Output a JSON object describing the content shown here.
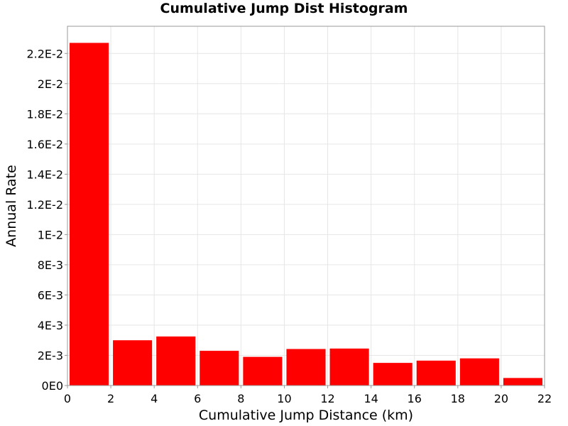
{
  "chart_data": {
    "type": "bar",
    "title": "Cumulative Jump Dist Histogram",
    "xlabel": "Cumulative Jump Distance (km)",
    "ylabel": "Annual Rate",
    "xlim": [
      0,
      22
    ],
    "ylim": [
      0,
      0.0238
    ],
    "grid": true,
    "legend": "none",
    "bar_color": "#ff0000",
    "bin_width": 2,
    "x": [
      1,
      3,
      5,
      7,
      9,
      11,
      13,
      15,
      17,
      19,
      21
    ],
    "values": [
      0.0227,
      0.003,
      0.00325,
      0.0023,
      0.0019,
      0.00242,
      0.00245,
      0.0015,
      0.00165,
      0.0018,
      0.0005
    ],
    "x_ticks": [
      0,
      2,
      4,
      6,
      8,
      10,
      12,
      14,
      16,
      18,
      20,
      22
    ],
    "x_tick_labels": [
      "0",
      "2",
      "4",
      "6",
      "8",
      "10",
      "12",
      "14",
      "16",
      "18",
      "20",
      "22"
    ],
    "y_ticks": [
      0,
      0.002,
      0.004,
      0.006,
      0.008,
      0.01,
      0.012,
      0.014,
      0.016,
      0.018,
      0.02,
      0.022
    ],
    "y_tick_labels": [
      "0E0",
      "2E-3",
      "4E-3",
      "6E-3",
      "8E-3",
      "1E-2",
      "1.2E-2",
      "1.4E-2",
      "1.6E-2",
      "1.8E-2",
      "2E-2",
      "2.2E-2"
    ]
  }
}
